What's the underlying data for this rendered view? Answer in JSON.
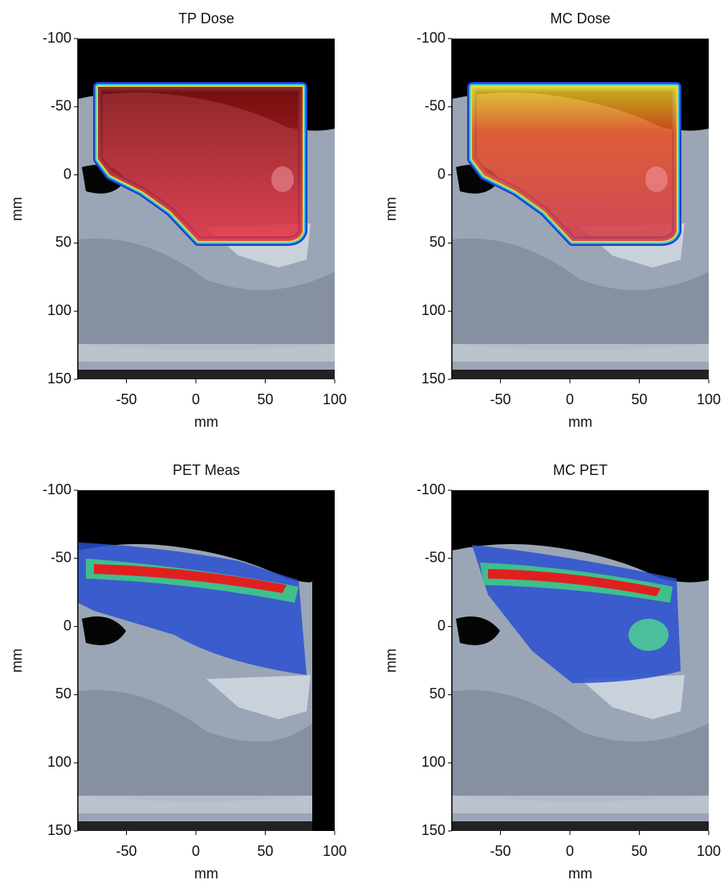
{
  "chart_data": [
    {
      "type": "image",
      "title": "TP Dose",
      "xlabel": "mm",
      "ylabel": "mm",
      "xlim": [
        -85,
        100
      ],
      "ylim": [
        -100,
        150
      ],
      "xticks": [
        -50,
        0,
        50,
        100
      ],
      "yticks": [
        -100,
        -50,
        0,
        50,
        100,
        150
      ]
    },
    {
      "type": "image",
      "title": "MC Dose",
      "xlabel": "mm",
      "ylabel": "mm",
      "xlim": [
        -85,
        100
      ],
      "ylim": [
        -100,
        150
      ],
      "xticks": [
        -50,
        0,
        50,
        100
      ],
      "yticks": [
        -100,
        -50,
        0,
        50,
        100,
        150
      ]
    },
    {
      "type": "image",
      "title": "PET Meas",
      "xlabel": "mm",
      "ylabel": "mm",
      "xlim": [
        -85,
        100
      ],
      "ylim": [
        -100,
        150
      ],
      "xticks": [
        -50,
        0,
        50,
        100
      ],
      "yticks": [
        -100,
        -50,
        0,
        50,
        100,
        150
      ]
    },
    {
      "type": "image",
      "title": "MC PET",
      "xlabel": "mm",
      "ylabel": "mm",
      "xlim": [
        -85,
        100
      ],
      "ylim": [
        -100,
        150
      ],
      "xticks": [
        -50,
        0,
        50,
        100
      ],
      "yticks": [
        -100,
        -50,
        0,
        50,
        100,
        150
      ]
    }
  ]
}
